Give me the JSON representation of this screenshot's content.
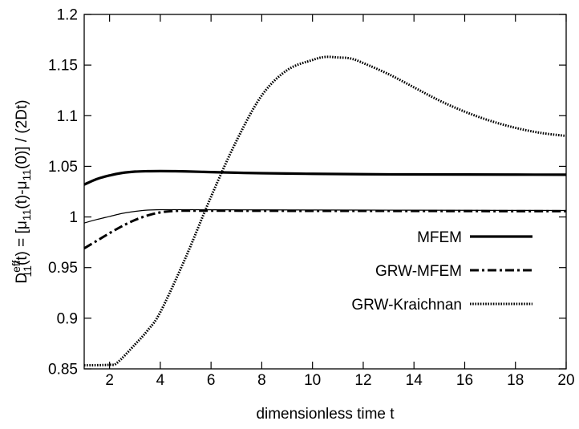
{
  "chart_data": {
    "type": "line",
    "title": "",
    "xlabel": "dimensionless time t",
    "ylabel": {
      "base": "D",
      "sup": "eff",
      "sub": "11",
      "rest1": "(t) = [μ",
      "sub2": "11",
      "rest2": "(t)-μ",
      "sub3": "11",
      "rest3": "(0)] / (2Dt)"
    },
    "xlim": [
      1,
      20
    ],
    "ylim": [
      0.85,
      1.2
    ],
    "xticks": [
      2,
      4,
      6,
      8,
      10,
      12,
      14,
      16,
      18,
      20
    ],
    "xtick_labels": [
      "2",
      "4",
      "6",
      "8",
      "10",
      "12",
      "14",
      "16",
      "18",
      "20"
    ],
    "yticks": [
      0.85,
      0.9,
      0.95,
      1,
      1.05,
      1.1,
      1.15,
      1.2
    ],
    "ytick_labels": [
      "0.85",
      "0.9",
      "0.95",
      "1",
      "1.05",
      "1.1",
      "1.15",
      "1.2"
    ],
    "grid": false,
    "legend_position": "right-center",
    "series": [
      {
        "name": "MFEM",
        "style": "solid-thick",
        "x": [
          1,
          1.5,
          2,
          2.5,
          3,
          3.5,
          4,
          4.5,
          5,
          6,
          7,
          8,
          10,
          12,
          14,
          16,
          18,
          20
        ],
        "y": [
          1.032,
          1.0375,
          1.041,
          1.0435,
          1.0448,
          1.0452,
          1.0453,
          1.0452,
          1.045,
          1.0443,
          1.0437,
          1.0432,
          1.0426,
          1.0422,
          1.042,
          1.0419,
          1.0418,
          1.0417
        ]
      },
      {
        "name": "",
        "style": "solid-thin",
        "x": [
          1,
          1.5,
          2,
          2.5,
          3,
          3.5,
          4,
          5,
          6,
          8,
          10,
          12,
          14,
          16,
          18,
          20
        ],
        "y": [
          0.994,
          0.9975,
          1.0005,
          1.0035,
          1.0055,
          1.0068,
          1.0072,
          1.0072,
          1.0071,
          1.007,
          1.0069,
          1.0068,
          1.0067,
          1.0066,
          1.0065,
          1.0064
        ]
      },
      {
        "name": "GRW-MFEM",
        "style": "dash-dot",
        "x": [
          1,
          1.5,
          2,
          2.5,
          3,
          3.5,
          4,
          4.5,
          5,
          6,
          8,
          10,
          12,
          14,
          16,
          18,
          20
        ],
        "y": [
          0.969,
          0.9765,
          0.984,
          0.991,
          0.997,
          1.0015,
          1.0045,
          1.0058,
          1.0062,
          1.0062,
          1.0061,
          1.006,
          1.006,
          1.0059,
          1.0058,
          1.0057,
          1.0057
        ]
      },
      {
        "name": "GRW-Kraichnan",
        "style": "dotted",
        "x": [
          1,
          2,
          2.3,
          3,
          3.5,
          4,
          5,
          6,
          7,
          8,
          9,
          10,
          10.5,
          11,
          11.5,
          12,
          13,
          14,
          15,
          16,
          17,
          18,
          19,
          20
        ],
        "y": [
          0.8535,
          0.854,
          0.856,
          0.874,
          0.888,
          0.906,
          0.96,
          1.02,
          1.075,
          1.12,
          1.145,
          1.155,
          1.158,
          1.1575,
          1.1565,
          1.152,
          1.141,
          1.128,
          1.115,
          1.104,
          1.095,
          1.088,
          1.083,
          1.08
        ]
      }
    ]
  }
}
